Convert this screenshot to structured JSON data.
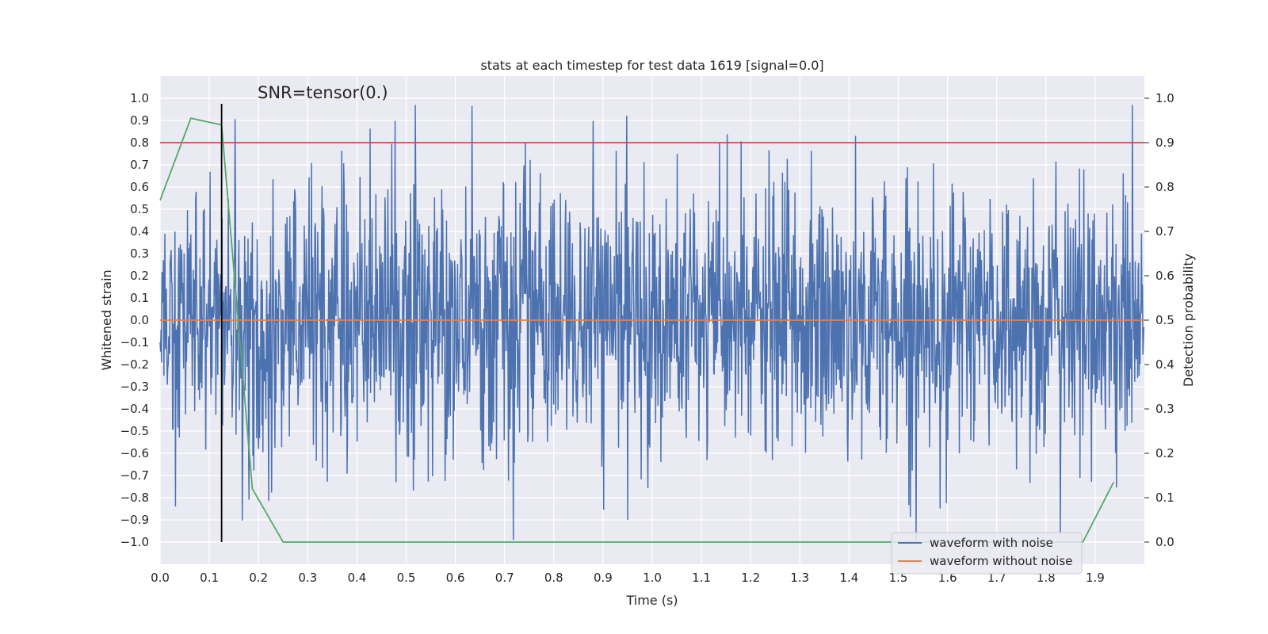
{
  "chart_data": {
    "type": "line",
    "title": "stats at each timestep for test data 1619 [signal=0.0]",
    "xlabel": "Time (s)",
    "ylabel": "Whitened strain",
    "y2label": "Detection probability",
    "xlim": [
      0.0,
      2.0
    ],
    "ylim": [
      -1.1,
      1.1
    ],
    "y2lim": [
      -0.05,
      1.05
    ],
    "xticks": [
      "0.0",
      "0.1",
      "0.2",
      "0.3",
      "0.4",
      "0.5",
      "0.6",
      "0.7",
      "0.8",
      "0.9",
      "1.0",
      "1.1",
      "1.2",
      "1.3",
      "1.4",
      "1.5",
      "1.6",
      "1.7",
      "1.8",
      "1.9"
    ],
    "yticks": [
      "1.0",
      "0.9",
      "0.8",
      "0.7",
      "0.6",
      "0.5",
      "0.4",
      "0.3",
      "0.2",
      "0.1",
      "0.0",
      "−0.1",
      "−0.2",
      "−0.3",
      "−0.4",
      "−0.5",
      "−0.6",
      "−0.7",
      "−0.8",
      "−0.9",
      "−1.0"
    ],
    "y2ticks": [
      "1.0",
      "0.9",
      "0.8",
      "0.7",
      "0.6",
      "0.5",
      "0.4",
      "0.3",
      "0.2",
      "0.1",
      "0.0"
    ],
    "grid": true,
    "legend_position": "lower-right",
    "annotation": "SNR=tensor(0.)",
    "series": [
      {
        "name": "waveform with noise",
        "color": "#4c72b0",
        "axis": "left",
        "generated_noise": {
          "n": 2048,
          "seed": 1619,
          "sigma": 0.3,
          "clip_max": 0.97,
          "clip_min": -0.99
        }
      },
      {
        "name": "waveform without noise",
        "color": "#dd8452",
        "axis": "left",
        "x": [
          0.0,
          2.0
        ],
        "y": [
          0.0,
          0.0
        ]
      },
      {
        "color": "#55a868",
        "axis": "right",
        "x": [
          0.0,
          0.0625,
          0.125,
          0.1875,
          0.25,
          0.3125,
          1.875,
          1.9375
        ],
        "y": [
          0.77,
          0.955,
          0.94,
          0.12,
          0.0,
          0.0,
          0.0,
          0.135
        ]
      }
    ],
    "threshold": {
      "axis": "right",
      "value": 0.9,
      "color": "#c44e52"
    },
    "vertical_line": {
      "x": 0.125,
      "ymin": -1.0,
      "ymax": 0.975,
      "color": "#000000"
    }
  }
}
